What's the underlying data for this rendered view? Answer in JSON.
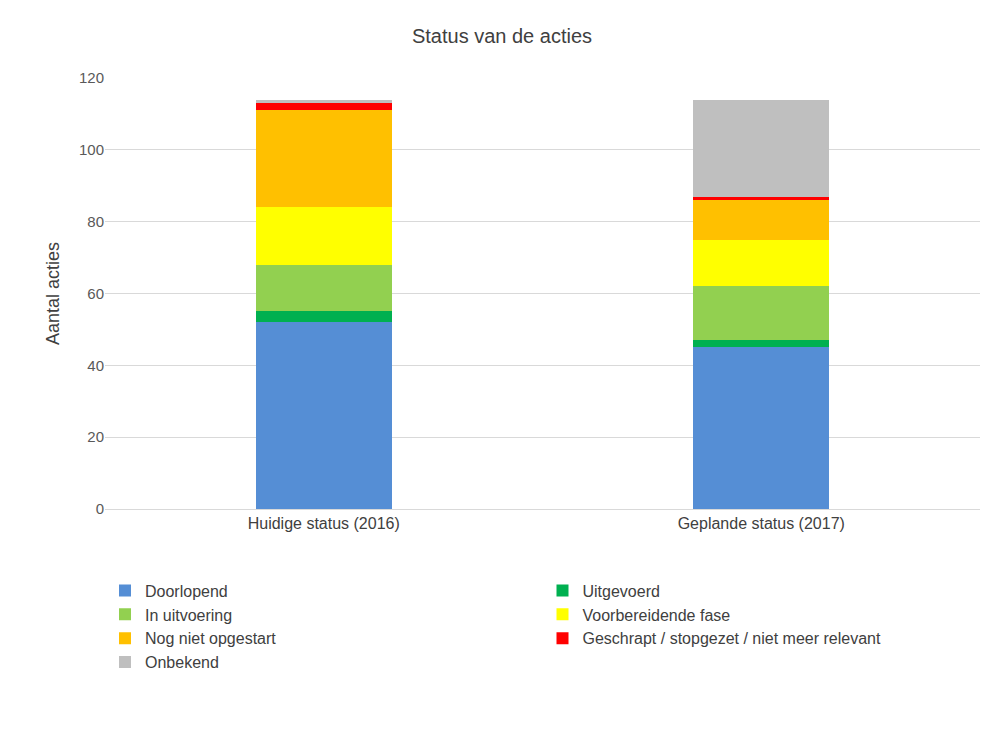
{
  "chart_data": {
    "type": "bar",
    "title": "Status van de acties",
    "y_label": "Aantal acties",
    "categories": [
      "Huidige status (2016)",
      "Geplande status (2017)"
    ],
    "stacked": true,
    "series": [
      {
        "name": "Doorlopend",
        "color": "#558ED5",
        "values": [
          52,
          45
        ]
      },
      {
        "name": "Uitgevoerd",
        "color": "#00B050",
        "values": [
          3,
          2
        ]
      },
      {
        "name": "In uitvoering",
        "color": "#92D050",
        "values": [
          13,
          15
        ]
      },
      {
        "name": "Voorbereidende fase",
        "color": "#FFFF00",
        "values": [
          16,
          13
        ]
      },
      {
        "name": "Nog niet opgestart",
        "color": "#FFC000",
        "values": [
          27,
          11
        ]
      },
      {
        "name": "Geschrapt / stopgezet / niet meer relevant",
        "color": "#FF0000",
        "values": [
          2,
          1
        ]
      },
      {
        "name": "Onbekend",
        "color": "#BFBFBF",
        "values": [
          1,
          27
        ]
      }
    ],
    "ylim": [
      0,
      120
    ],
    "yticks": [
      0,
      20,
      40,
      60,
      80,
      100,
      120
    ],
    "grid": true,
    "legend": "bottom"
  }
}
